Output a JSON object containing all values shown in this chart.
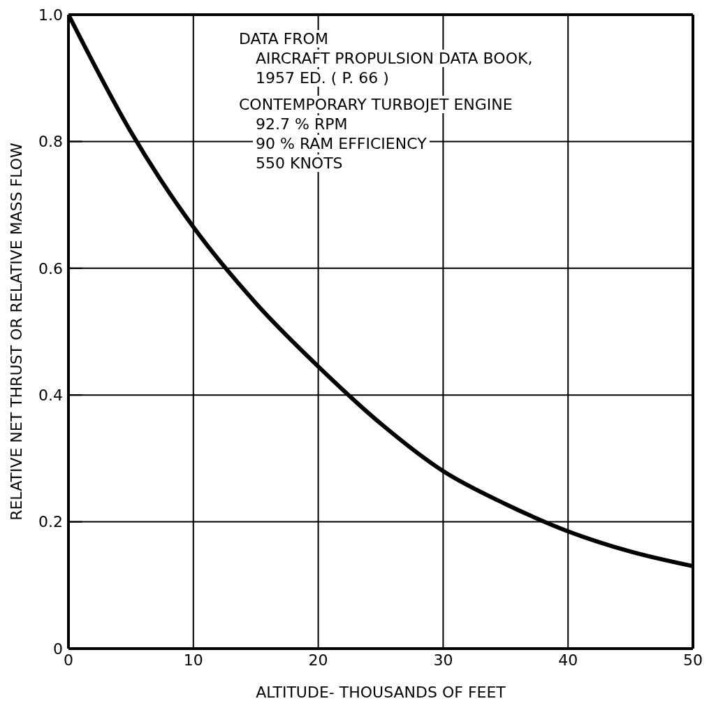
{
  "chart_data": {
    "type": "line",
    "xlabel": "ALTITUDE- THOUSANDS OF FEET",
    "ylabel": "RELATIVE NET THRUST OR RELATIVE MASS FLOW",
    "x": [
      0,
      5,
      10,
      15,
      20,
      25,
      30,
      35,
      40,
      45,
      50
    ],
    "series": [
      {
        "color": "#000000",
        "values": [
          1.0,
          0.815,
          0.665,
          0.545,
          0.445,
          0.355,
          0.28,
          0.228,
          0.185,
          0.153,
          0.13
        ]
      }
    ],
    "xlim": [
      0,
      50
    ],
    "xticks": [
      0,
      10,
      20,
      30,
      40,
      50
    ],
    "ylim": [
      0,
      1
    ],
    "yticks": [
      0,
      0.2,
      0.4,
      0.6,
      0.8,
      {
        "value": 1,
        "label": "1.0"
      }
    ],
    "grid": true,
    "marker": "none",
    "line_style": "solid",
    "annotations": [
      "DATA FROM",
      "AIRCRAFT PROPULSION DATA BOOK,",
      "1957 ED. ( P. 66 )",
      "CONTEMPORARY TURBOJET ENGINE",
      "92.7 % RPM",
      "90 % RAM EFFICIENCY",
      "550 KNOTS"
    ]
  }
}
